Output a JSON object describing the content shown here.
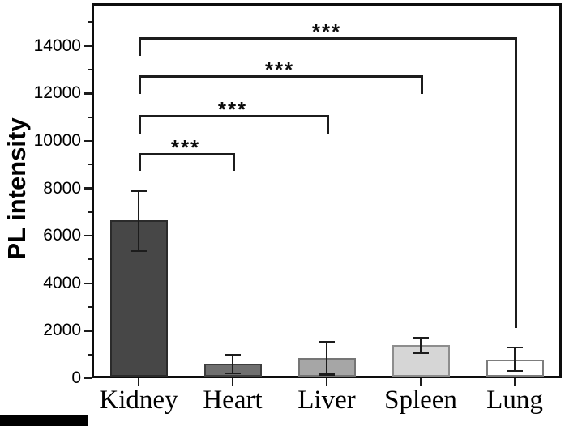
{
  "chart_data": {
    "type": "bar",
    "title": "",
    "xlabel": "",
    "ylabel": "PL intensity",
    "categories": [
      "Kidney",
      "Heart",
      "Liver",
      "Spleen",
      "Lung"
    ],
    "values": [
      6650,
      600,
      850,
      1400,
      800
    ],
    "error_low": [
      5350,
      200,
      150,
      1050,
      300
    ],
    "error_high": [
      7900,
      1000,
      1550,
      1700,
      1300
    ],
    "ylim": [
      0,
      15800
    ],
    "ytick_values": [
      0,
      2000,
      4000,
      6000,
      8000,
      10000,
      12000,
      14000
    ],
    "ytick_labels": [
      "0",
      "2000",
      "4000",
      "6000",
      "8000",
      "10000",
      "12000",
      "14000"
    ],
    "minor_ytick_values": [
      1000,
      3000,
      5000,
      7000,
      9000,
      11000,
      13000,
      15000
    ],
    "grid": false,
    "legend": null,
    "bar_fill_colors": [
      "#474747",
      "#6f6f6f",
      "#a6a6a6",
      "#d6d6d6",
      "#ffffff"
    ],
    "bar_edge_colors": [
      "#2b2b2b",
      "#3e3e3e",
      "#757575",
      "#8d8d8d",
      "#7d7d7d"
    ],
    "error_bar_color": "#1c1c1c",
    "axis_color": "#0d0d0d",
    "significance_brackets": [
      {
        "from": "Kidney",
        "to": "Heart",
        "label": "***",
        "level": 9500,
        "right_arm_end": null
      },
      {
        "from": "Kidney",
        "to": "Liver",
        "label": "***",
        "level": 11100,
        "right_arm_end": null
      },
      {
        "from": "Kidney",
        "to": "Spleen",
        "label": "***",
        "level": 12750,
        "right_arm_end": null
      },
      {
        "from": "Kidney",
        "to": "Lung",
        "label": "***",
        "level": 14350,
        "right_arm_end": 2100
      }
    ]
  }
}
